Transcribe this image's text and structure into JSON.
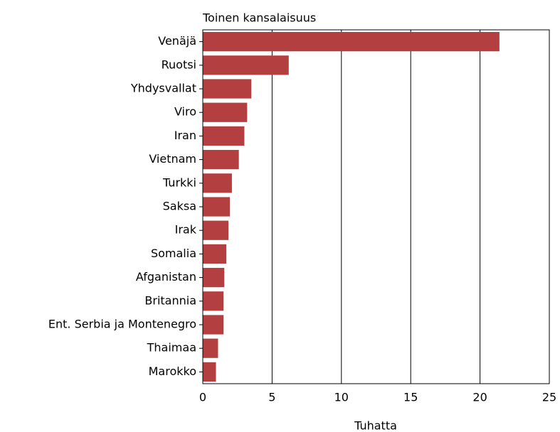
{
  "chart_data": {
    "type": "hbar",
    "y_label": "Toinen kansalaisuus",
    "x_label": "Tuhatta",
    "categories": [
      "Venäjä",
      "Ruotsi",
      "Yhdysvallat",
      "Viro",
      "Iran",
      "Vietnam",
      "Turkki",
      "Saksa",
      "Irak",
      "Somalia",
      "Afganistan",
      "Britannia",
      "Ent. Serbia ja Montenegro",
      "Thaimaa",
      "Marokko"
    ],
    "values": [
      21.4,
      6.2,
      3.5,
      3.2,
      3.0,
      2.6,
      2.1,
      1.95,
      1.85,
      1.7,
      1.55,
      1.5,
      1.5,
      1.1,
      0.95
    ],
    "color": "#b33f40",
    "xlim": [
      0,
      25
    ],
    "xticks": [
      0,
      5,
      10,
      15,
      20,
      25
    ],
    "grid": true
  }
}
